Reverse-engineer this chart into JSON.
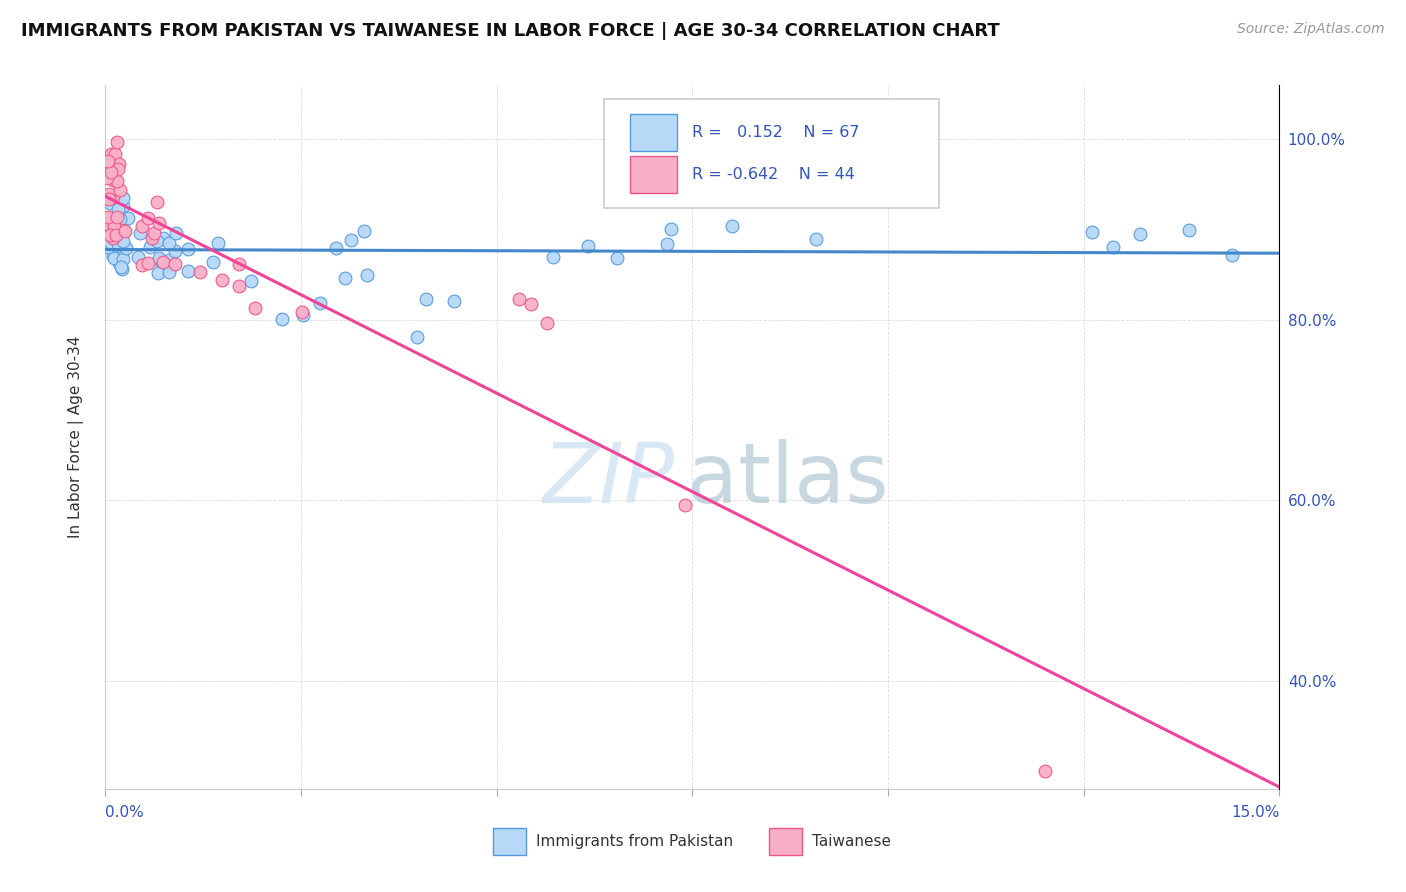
{
  "title": "IMMIGRANTS FROM PAKISTAN VS TAIWANESE IN LABOR FORCE | AGE 30-34 CORRELATION CHART",
  "source": "Source: ZipAtlas.com",
  "ylabel": "In Labor Force | Age 30-34",
  "xlim": [
    0.0,
    0.15
  ],
  "ylim": [
    0.28,
    1.06
  ],
  "pakistan_R": 0.152,
  "pakistan_N": 67,
  "taiwanese_R": -0.642,
  "taiwanese_N": 44,
  "color_pakistan_fill": "#b8d8f8",
  "color_pakistan_edge": "#5599dd",
  "color_taiwanese_fill": "#f8b0c8",
  "color_taiwanese_edge": "#ee5588",
  "color_pakistan_line": "#4488cc",
  "color_taiwanese_line": "#ee4499",
  "color_blue_text": "#3355bb",
  "watermark_color": "#c5ddf0",
  "background": "#ffffff"
}
